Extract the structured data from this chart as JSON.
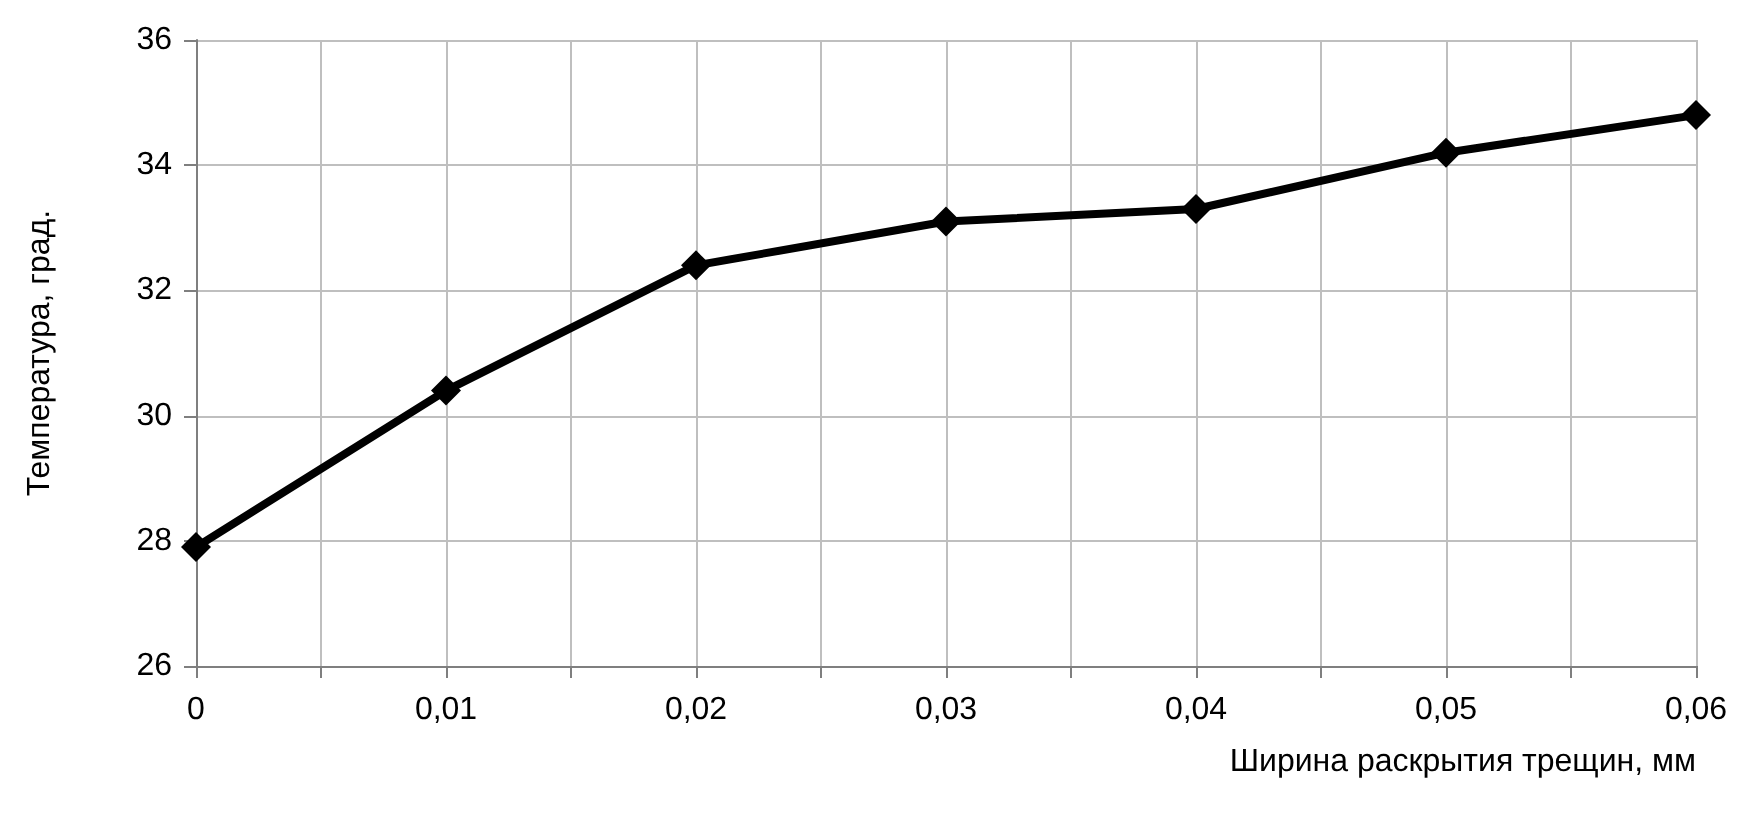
{
  "chart_data": {
    "type": "line",
    "xlabel": "Ширина раскрытия трещин, мм",
    "ylabel": "Температура, град.",
    "x": [
      0,
      0.01,
      0.02,
      0.03,
      0.04,
      0.05,
      0.06
    ],
    "series": [
      {
        "color": "#000000",
        "values": [
          27.9,
          30.4,
          32.4,
          33.1,
          33.3,
          34.2,
          34.8
        ]
      }
    ],
    "xlim": [
      0,
      0.06
    ],
    "xticks": [
      {
        "value": 0,
        "label": "0"
      },
      {
        "value": 0.005,
        "label": null
      },
      {
        "value": 0.01,
        "label": "0,01"
      },
      {
        "value": 0.015,
        "label": null
      },
      {
        "value": 0.02,
        "label": "0,02"
      },
      {
        "value": 0.025,
        "label": null
      },
      {
        "value": 0.03,
        "label": "0,03"
      },
      {
        "value": 0.035,
        "label": null
      },
      {
        "value": 0.04,
        "label": "0,04"
      },
      {
        "value": 0.045,
        "label": null
      },
      {
        "value": 0.05,
        "label": "0,05"
      },
      {
        "value": 0.055,
        "label": null
      },
      {
        "value": 0.06,
        "label": "0,06"
      }
    ],
    "ylim": [
      26,
      36
    ],
    "yticks": [
      26,
      28,
      30,
      32,
      34,
      36
    ],
    "grid": true,
    "marker": "diamond",
    "line_style": "solid"
  }
}
